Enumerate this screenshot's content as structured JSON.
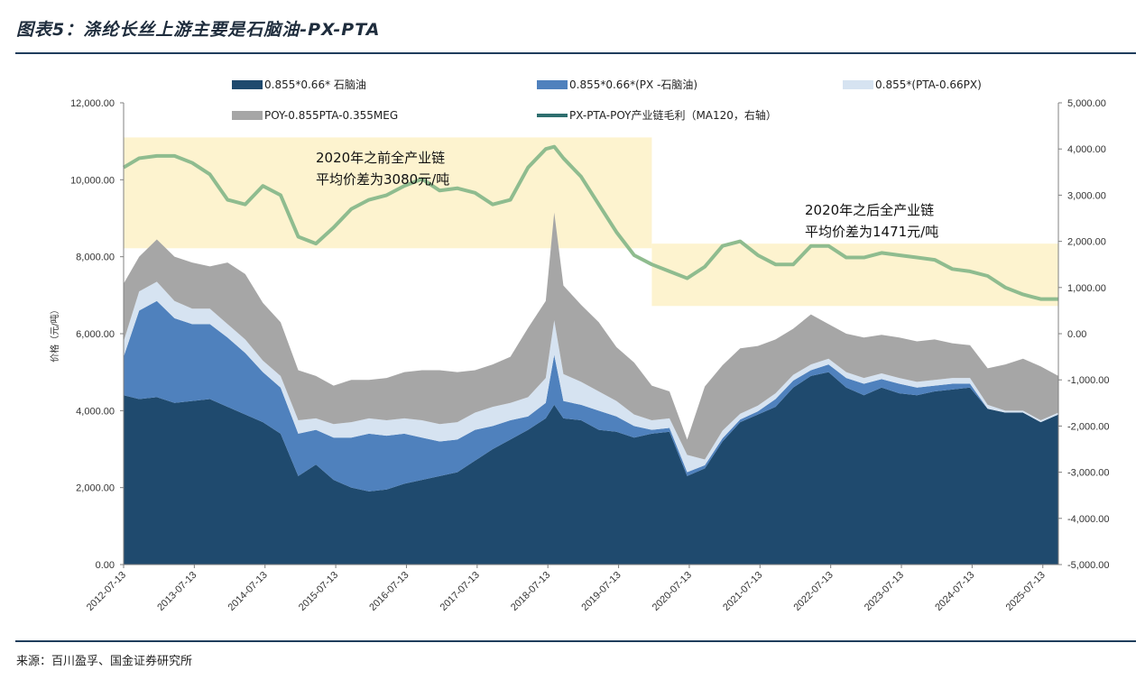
{
  "figure": {
    "title": "图表5：涤纶长丝上游主要是石脑油-PX-PTA",
    "source": "来源：百川盈孚、国金证券研究所"
  },
  "colors": {
    "naphtha": "#1f4a6e",
    "px_spread": "#4f81bd",
    "pta_spread": "#d6e3f1",
    "poy_spread": "#a6a6a6",
    "margin_line": "#8fbc8f",
    "legend_margin": "#2e6e6e",
    "highlight": "#fdf3cf",
    "rule": "#1f3d5c"
  },
  "chart_data": {
    "type": "area",
    "stacked": true,
    "title": "涤纶长丝上游主要是石脑油-PX-PTA",
    "ylabel": "价格（元/吨）",
    "ylim": [
      0,
      12000
    ],
    "y2lim": [
      -5000,
      5000
    ],
    "y_ticks": [
      "0.00",
      "2,000.00",
      "4,000.00",
      "6,000.00",
      "8,000.00",
      "10,000.00",
      "12,000.00"
    ],
    "y2_ticks": [
      "-5,000.00",
      "-4,000.00",
      "-3,000.00",
      "-2,000.00",
      "-1,000.00",
      "0.00",
      "1,000.00",
      "2,000.00",
      "3,000.00",
      "4,000.00",
      "5,000.00"
    ],
    "x_ticks": [
      "2012-07-13",
      "2013-07-13",
      "2014-07-13",
      "2015-07-13",
      "2016-07-13",
      "2017-07-13",
      "2018-07-13",
      "2019-07-13",
      "2020-07-13",
      "2021-07-13",
      "2022-07-13",
      "2023-07-13",
      "2024-07-13",
      "2025-07-13"
    ],
    "x": [
      2012.53,
      2012.75,
      2013.0,
      2013.25,
      2013.5,
      2013.75,
      2014.0,
      2014.25,
      2014.5,
      2014.75,
      2015.0,
      2015.25,
      2015.5,
      2015.75,
      2016.0,
      2016.25,
      2016.5,
      2016.75,
      2017.0,
      2017.25,
      2017.5,
      2017.75,
      2018.0,
      2018.25,
      2018.5,
      2018.62,
      2018.75,
      2019.0,
      2019.25,
      2019.5,
      2019.75,
      2020.0,
      2020.25,
      2020.5,
      2020.75,
      2021.0,
      2021.25,
      2021.5,
      2021.75,
      2022.0,
      2022.25,
      2022.5,
      2022.75,
      2023.0,
      2023.25,
      2023.5,
      2023.75,
      2024.0,
      2024.25,
      2024.5,
      2024.75,
      2025.0,
      2025.25,
      2025.5,
      2025.75
    ],
    "xlim": [
      2012.53,
      2025.75
    ],
    "series": [
      {
        "name": "0.855*0.66* 石脑油",
        "axis": "left",
        "values": [
          4400,
          4300,
          4350,
          4200,
          4250,
          4300,
          4100,
          3900,
          3700,
          3400,
          2300,
          2600,
          2200,
          2000,
          1900,
          1950,
          2100,
          2200,
          2300,
          2400,
          2700,
          3000,
          3250,
          3500,
          3800,
          4150,
          3800,
          3750,
          3500,
          3450,
          3300,
          3400,
          3450,
          2300,
          2500,
          3200,
          3700,
          3900,
          4100,
          4600,
          4900,
          5000,
          4600,
          4400,
          4600,
          4450,
          4400,
          4500,
          4550,
          4600,
          4050,
          3950,
          3950,
          3700,
          3900
        ]
      },
      {
        "name": "0.855*0.66*(PX -石脑油)",
        "axis": "left",
        "values": [
          1000,
          2300,
          2500,
          2200,
          2000,
          1950,
          1800,
          1600,
          1300,
          1200,
          1100,
          900,
          1100,
          1300,
          1500,
          1400,
          1300,
          1100,
          900,
          850,
          800,
          600,
          500,
          350,
          400,
          1300,
          450,
          400,
          500,
          400,
          300,
          100,
          100,
          100,
          80,
          80,
          70,
          80,
          200,
          180,
          150,
          200,
          250,
          300,
          220,
          250,
          200,
          150,
          150,
          100,
          0,
          0,
          0,
          0,
          0
        ]
      },
      {
        "name": "0.855*(PTA-0.66PX)",
        "axis": "left",
        "values": [
          400,
          500,
          500,
          450,
          400,
          400,
          350,
          350,
          300,
          300,
          350,
          300,
          350,
          400,
          400,
          400,
          400,
          450,
          450,
          450,
          450,
          500,
          450,
          500,
          650,
          900,
          700,
          600,
          500,
          400,
          300,
          250,
          250,
          450,
          150,
          200,
          150,
          150,
          150,
          150,
          150,
          150,
          150,
          150,
          150,
          150,
          150,
          150,
          150,
          150,
          100,
          50,
          50,
          50,
          50
        ]
      },
      {
        "name": "POY-0.855PTA-0.355MEG",
        "axis": "left",
        "values": [
          1500,
          900,
          1100,
          1150,
          1200,
          1100,
          1600,
          1700,
          1500,
          1400,
          1300,
          1100,
          1000,
          1100,
          1000,
          1100,
          1200,
          1300,
          1400,
          1300,
          1100,
          1100,
          1200,
          1800,
          2000,
          2800,
          2300,
          2000,
          1800,
          1400,
          1350,
          900,
          700,
          400,
          1900,
          1700,
          1700,
          1550,
          1400,
          1200,
          1300,
          900,
          1000,
          1050,
          1000,
          1050,
          1050,
          1050,
          900,
          850,
          950,
          1200,
          1350,
          1400,
          950
        ]
      },
      {
        "name": "PX-PTA-POY产业链毛利（MA120，右轴）",
        "axis": "right",
        "type": "line",
        "values": [
          3600,
          3800,
          3850,
          3850,
          3700,
          3450,
          2900,
          2800,
          3200,
          3000,
          2100,
          1950,
          2300,
          2700,
          2900,
          3000,
          3200,
          3350,
          3100,
          3150,
          3050,
          2800,
          2900,
          3600,
          4000,
          4050,
          3800,
          3400,
          2800,
          2200,
          1700,
          1500,
          1350,
          1200,
          1450,
          1900,
          2000,
          1700,
          1500,
          1500,
          1900,
          1900,
          1650,
          1650,
          1750,
          1700,
          1650,
          1600,
          1400,
          1350,
          1250,
          1000,
          850,
          750,
          750
        ]
      }
    ],
    "legend": [
      "0.855*0.66* 石脑油",
      "0.855*0.66*(PX -石脑油)",
      "0.855*(PTA-0.66PX)",
      "POY-0.855PTA-0.355MEG",
      "PX-PTA-POY产业链毛利（MA120，右轴）"
    ],
    "annotations": [
      {
        "line1": "2020年之前全产业链",
        "line2": "平均价差为3080元/吨",
        "x_start": 2012.53,
        "x_end": 2020.0,
        "y2_low": 1850,
        "y2_high": 4250
      },
      {
        "line1": "2020年之后全产业链",
        "line2": "平均价差为1471元/吨",
        "x_start": 2020.0,
        "x_end": 2025.75,
        "y2_low": 600,
        "y2_high": 1950
      }
    ],
    "grid": false,
    "legend_position": "top"
  }
}
